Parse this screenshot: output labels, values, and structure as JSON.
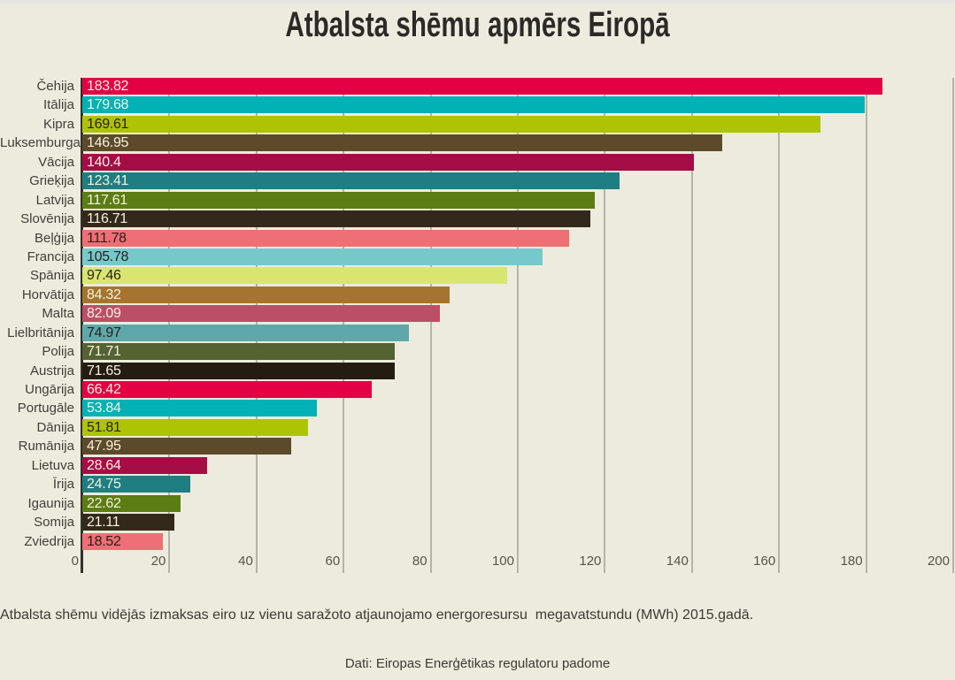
{
  "page": {
    "background": "#ecebdd",
    "top_strip_color": "#e4e4e1"
  },
  "chart_data": {
    "type": "bar",
    "orientation": "horizontal",
    "title": "Atbalsta shēmu apmērs Eiropā",
    "xlabel": "",
    "ylabel": "",
    "xlim": [
      0,
      200
    ],
    "x_ticks": [
      0,
      20,
      40,
      60,
      80,
      100,
      120,
      140,
      160,
      180,
      200
    ],
    "grid": true,
    "legend": false,
    "series": [
      {
        "label": "Čehija",
        "value": 183.82,
        "color": "#e40045",
        "value_color": "light"
      },
      {
        "label": "Itālija",
        "value": 179.68,
        "color": "#00b1b5",
        "value_color": "light"
      },
      {
        "label": "Kipra",
        "value": 169.61,
        "color": "#adc405",
        "value_color": "dark"
      },
      {
        "label": "Luksemburga",
        "value": 146.95,
        "color": "#5d4a2a",
        "value_color": "light"
      },
      {
        "label": "Vācija",
        "value": 140.4,
        "color": "#a50d47",
        "value_color": "light"
      },
      {
        "label": "Grieķija",
        "value": 123.41,
        "color": "#1e7e82",
        "value_color": "light"
      },
      {
        "label": "Latvija",
        "value": 117.61,
        "color": "#5c7c14",
        "value_color": "light"
      },
      {
        "label": "Slovēnija",
        "value": 116.71,
        "color": "#33291a",
        "value_color": "light"
      },
      {
        "label": "Beļģija",
        "value": 111.78,
        "color": "#ee6f75",
        "value_color": "dark"
      },
      {
        "label": "Francija",
        "value": 105.78,
        "color": "#76c9cb",
        "value_color": "dark"
      },
      {
        "label": "Spānija",
        "value": 97.46,
        "color": "#d8e670",
        "value_color": "dark"
      },
      {
        "label": "Horvātija",
        "value": 84.32,
        "color": "#a5752f",
        "value_color": "light"
      },
      {
        "label": "Malta",
        "value": 82.09,
        "color": "#bc4f68",
        "value_color": "light"
      },
      {
        "label": "Lielbritānija",
        "value": 74.97,
        "color": "#5fa8aa",
        "value_color": "dark"
      },
      {
        "label": "Polija",
        "value": 71.71,
        "color": "#556231",
        "value_color": "light"
      },
      {
        "label": "Austrija",
        "value": 71.65,
        "color": "#251c11",
        "value_color": "light"
      },
      {
        "label": "Ungārija",
        "value": 66.42,
        "color": "#e40045",
        "value_color": "light"
      },
      {
        "label": "Portugāle",
        "value": 53.84,
        "color": "#00b1b5",
        "value_color": "light"
      },
      {
        "label": "Dānija",
        "value": 51.81,
        "color": "#adc405",
        "value_color": "dark"
      },
      {
        "label": "Rumānija",
        "value": 47.95,
        "color": "#5d4a2a",
        "value_color": "light"
      },
      {
        "label": "Lietuva",
        "value": 28.64,
        "color": "#a50d47",
        "value_color": "light"
      },
      {
        "label": "Īrija",
        "value": 24.75,
        "color": "#1e7e82",
        "value_color": "light"
      },
      {
        "label": "Igaunija",
        "value": 22.62,
        "color": "#5c7c14",
        "value_color": "light"
      },
      {
        "label": "Somija",
        "value": 21.11,
        "color": "#33291a",
        "value_color": "light"
      },
      {
        "label": "Zviedrija",
        "value": 18.52,
        "color": "#ee6f75",
        "value_color": "dark"
      }
    ],
    "note": "Atbalsta shēmu vidējās izmaksas eiro uz vienu saražoto atjaunojamo energoresursu  megavatstundu (MWh) 2015.gadā.",
    "source": "Dati: Eiropas Enerģētikas regulatoru padome"
  },
  "colors": {
    "axis_line": "#34312a",
    "gridline": "#b5b4aa",
    "tick_text": "#56544c",
    "country_text": "#403f39",
    "title_text": "#2b2a26",
    "value_text_light": "#f3f1e0",
    "value_text_dark": "#2a2119"
  }
}
